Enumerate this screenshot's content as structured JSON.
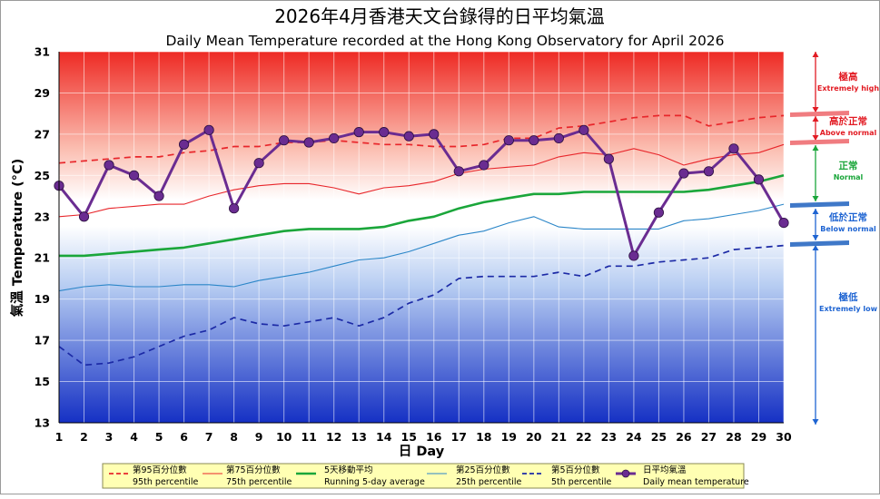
{
  "chart_data": {
    "type": "line",
    "title_zh": "2026年4月香港天文台錄得的日平均氣溫",
    "title": "Daily Mean Temperature recorded at the Hong Kong Observatory for April 2026",
    "xlabel": "日 Day",
    "ylabel": "氣溫 Temperature (°C)",
    "ylim": [
      13,
      31
    ],
    "yticks": [
      13,
      15,
      17,
      19,
      21,
      23,
      25,
      27,
      29,
      31
    ],
    "x": [
      1,
      2,
      3,
      4,
      5,
      6,
      7,
      8,
      9,
      10,
      11,
      12,
      13,
      14,
      15,
      16,
      17,
      18,
      19,
      20,
      21,
      22,
      23,
      24,
      25,
      26,
      27,
      28,
      29,
      30
    ],
    "grid": true,
    "legend_position": "bottom",
    "series": [
      {
        "name": "第95百分位數 95th percentile",
        "style": "dashed",
        "color": "#e8262b",
        "values": [
          25.6,
          25.7,
          25.8,
          25.9,
          25.9,
          26.1,
          26.2,
          26.4,
          26.4,
          26.6,
          26.6,
          26.7,
          26.6,
          26.5,
          26.5,
          26.4,
          26.4,
          26.5,
          26.8,
          26.8,
          27.3,
          27.4,
          27.6,
          27.8,
          27.9,
          27.9,
          27.4,
          27.6,
          27.8,
          27.9
        ]
      },
      {
        "name": "第75百分位數 75th percentile",
        "style": "solid-thin",
        "color": "#e8262b",
        "values": [
          23.0,
          23.1,
          23.4,
          23.5,
          23.6,
          23.6,
          24.0,
          24.3,
          24.5,
          24.6,
          24.6,
          24.4,
          24.1,
          24.4,
          24.5,
          24.7,
          25.1,
          25.3,
          25.4,
          25.5,
          25.9,
          26.1,
          26.0,
          26.3,
          26.0,
          25.5,
          25.8,
          26.0,
          26.1,
          26.5
        ]
      },
      {
        "name": "5天移動平均 Running 5-day average",
        "style": "solid-thick",
        "color": "#1aa63a",
        "values": [
          21.1,
          21.1,
          21.2,
          21.3,
          21.4,
          21.5,
          21.7,
          21.9,
          22.1,
          22.3,
          22.4,
          22.4,
          22.4,
          22.5,
          22.8,
          23.0,
          23.4,
          23.7,
          23.9,
          24.1,
          24.1,
          24.2,
          24.2,
          24.2,
          24.2,
          24.2,
          24.3,
          24.5,
          24.7,
          25.0
        ]
      },
      {
        "name": "第25百分位數 25th percentile",
        "style": "solid-thin",
        "color": "#2b86c8",
        "values": [
          19.4,
          19.6,
          19.7,
          19.6,
          19.6,
          19.7,
          19.7,
          19.6,
          19.9,
          20.1,
          20.3,
          20.6,
          20.9,
          21.0,
          21.3,
          21.7,
          22.1,
          22.3,
          22.7,
          23.0,
          22.5,
          22.4,
          22.4,
          22.4,
          22.4,
          22.8,
          22.9,
          23.1,
          23.3,
          23.6
        ]
      },
      {
        "name": "第5百分位數 5th percentile",
        "style": "dashed",
        "color": "#1c2aa6",
        "values": [
          16.7,
          15.8,
          15.9,
          16.2,
          16.7,
          17.2,
          17.5,
          18.1,
          17.8,
          17.7,
          17.9,
          18.1,
          17.7,
          18.1,
          18.8,
          19.2,
          20.0,
          20.1,
          20.1,
          20.1,
          20.3,
          20.1,
          20.6,
          20.6,
          20.8,
          20.9,
          21.0,
          21.4,
          21.5,
          21.6
        ]
      },
      {
        "name": "日平均氣溫 Daily mean temperature",
        "style": "marker-line",
        "color": "#6a2c91",
        "values": [
          24.5,
          23.0,
          25.5,
          25.0,
          24.0,
          26.5,
          27.2,
          23.4,
          25.6,
          26.7,
          26.6,
          26.8,
          27.1,
          27.1,
          26.9,
          27.0,
          25.2,
          25.5,
          26.7,
          26.7,
          26.8,
          27.2,
          25.8,
          21.1,
          23.2,
          25.1,
          25.2,
          26.3,
          24.8,
          22.7
        ]
      }
    ],
    "categories_scale": [
      {
        "zh": "極高",
        "en": "Extremely high",
        "color": "#e21b23"
      },
      {
        "zh": "高於正常",
        "en": "Above normal",
        "color": "#e21b23"
      },
      {
        "zh": "正常",
        "en": "Normal",
        "color": "#1aa63a"
      },
      {
        "zh": "低於正常",
        "en": "Below normal",
        "color": "#1e64d2"
      },
      {
        "zh": "極低",
        "en": "Extremely low",
        "color": "#1e64d2"
      }
    ]
  }
}
